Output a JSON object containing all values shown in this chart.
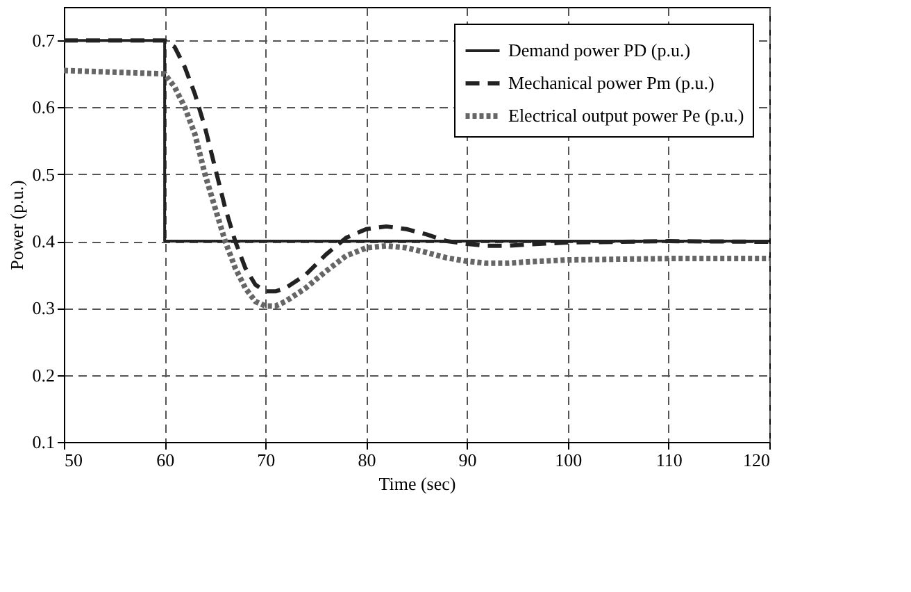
{
  "chart_data": {
    "type": "line",
    "xlabel": "Time (sec)",
    "ylabel": "Power (p.u.)",
    "xlim": [
      50,
      120
    ],
    "xticks": [
      50,
      60,
      70,
      80,
      90,
      100,
      110,
      120
    ],
    "ylim": [
      0.1,
      0.75
    ],
    "yticks": [
      0.1,
      0.2,
      0.3,
      0.4,
      0.5,
      0.6,
      0.7
    ],
    "grid": true,
    "legend": "top right",
    "series": [
      {
        "name": "Demand power PD (p.u.)",
        "color": "#222222",
        "line_style": "solid",
        "x": [
          50,
          60,
          60,
          120
        ],
        "values": [
          0.7,
          0.7,
          0.4,
          0.4
        ]
      },
      {
        "name": "Mechanical power Pm (p.u.)",
        "color": "#222222",
        "line_style": "dashed",
        "x": [
          50,
          60,
          61,
          62,
          63,
          64,
          65,
          66,
          67,
          68,
          69,
          70,
          71,
          72,
          74,
          76,
          78,
          80,
          82,
          84,
          86,
          88,
          90,
          92,
          94,
          96,
          100,
          110,
          120
        ],
        "values": [
          0.7,
          0.7,
          0.69,
          0.66,
          0.62,
          0.57,
          0.51,
          0.45,
          0.4,
          0.36,
          0.335,
          0.325,
          0.325,
          0.33,
          0.35,
          0.38,
          0.405,
          0.418,
          0.422,
          0.418,
          0.41,
          0.4,
          0.396,
          0.393,
          0.393,
          0.395,
          0.398,
          0.4,
          0.399
        ]
      },
      {
        "name": "Electrical output power Pe (p.u.)",
        "color": "#666666",
        "line_style": "dotted",
        "x": [
          50,
          60,
          61,
          62,
          63,
          64,
          65,
          66,
          67,
          68,
          69,
          70,
          71,
          72,
          74,
          76,
          78,
          80,
          82,
          84,
          86,
          88,
          90,
          92,
          94,
          96,
          100,
          110,
          120
        ],
        "values": [
          0.655,
          0.65,
          0.63,
          0.6,
          0.56,
          0.5,
          0.45,
          0.4,
          0.36,
          0.33,
          0.31,
          0.303,
          0.303,
          0.31,
          0.33,
          0.355,
          0.378,
          0.39,
          0.393,
          0.39,
          0.383,
          0.375,
          0.37,
          0.367,
          0.367,
          0.369,
          0.372,
          0.374,
          0.374
        ]
      }
    ]
  }
}
